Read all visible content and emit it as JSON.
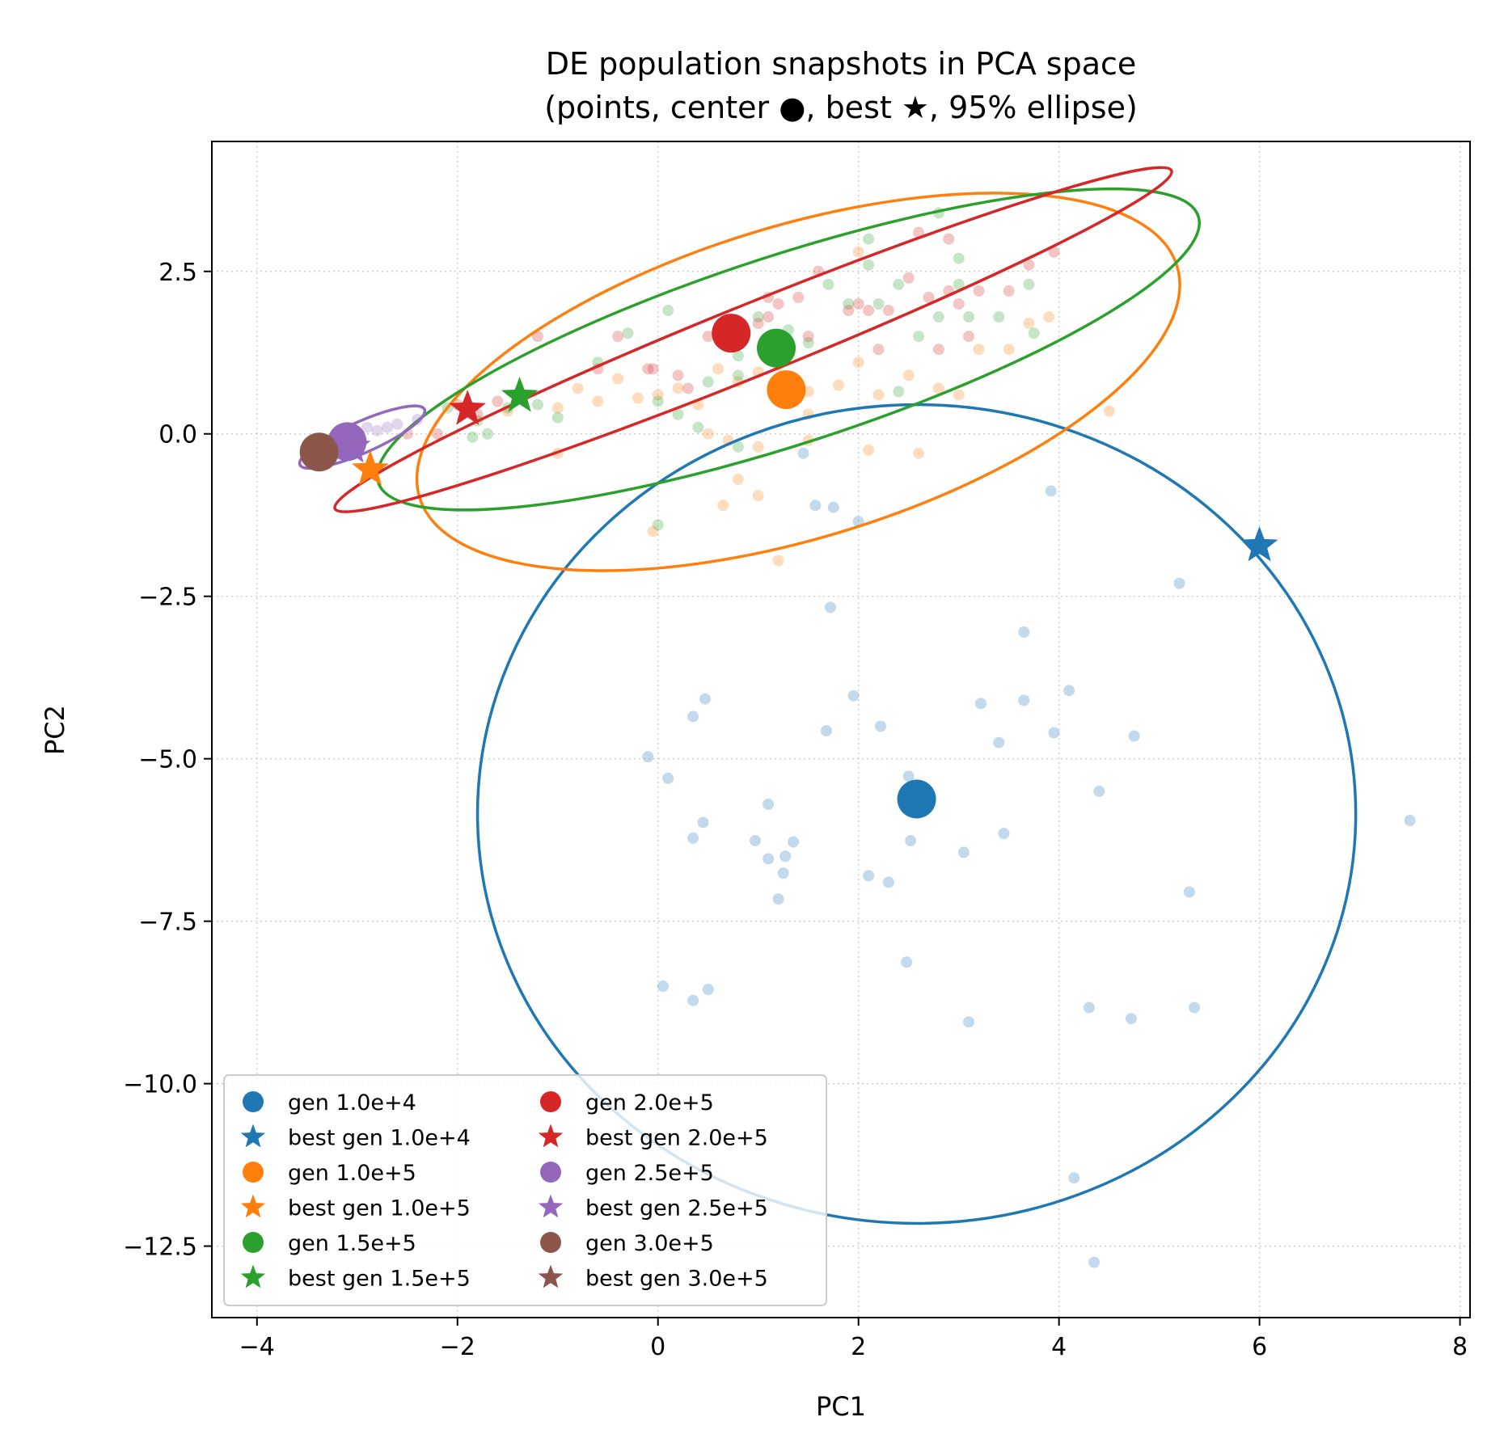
{
  "chart_data": {
    "type": "scatter",
    "title": "DE population snapshots in PCA space",
    "subtitle": "(points, center ●, best ★, 95% ellipse)",
    "xlabel": "PC1",
    "ylabel": "PC2",
    "xlim": [
      -4.45,
      8.1
    ],
    "ylim": [
      -13.6,
      4.5
    ],
    "xticks": [
      -4,
      -2,
      0,
      2,
      4,
      6,
      8
    ],
    "xtick_labels": [
      "−4",
      "−2",
      "0",
      "2",
      "4",
      "6",
      "8"
    ],
    "yticks": [
      2.5,
      0.0,
      -2.5,
      -5.0,
      -7.5,
      -10.0,
      -12.5
    ],
    "ytick_labels": [
      "2.5",
      "0.0",
      "−2.5",
      "−5.0",
      "−7.5",
      "−10.0",
      "−12.5"
    ],
    "grid": true,
    "legend_position": "lower-left",
    "series": [
      {
        "name": "gen 1.0e+4",
        "best_name": "best gen 1.0e+4",
        "color": "#1f77b4",
        "center": [
          2.58,
          -5.62
        ],
        "best": [
          6.0,
          -1.72
        ],
        "ellipse": {
          "cx": 2.58,
          "cy": -5.85,
          "rx": 4.38,
          "ry": 6.3,
          "angle": 0
        },
        "points": [
          [
            -0.1,
            -4.97
          ],
          [
            0.1,
            -5.3
          ],
          [
            0.35,
            -4.35
          ],
          [
            0.47,
            -4.08
          ],
          [
            0.45,
            -5.98
          ],
          [
            0.35,
            -6.22
          ],
          [
            0.97,
            -6.26
          ],
          [
            1.1,
            -5.7
          ],
          [
            1.1,
            -6.54
          ],
          [
            1.27,
            -6.5
          ],
          [
            1.35,
            -6.28
          ],
          [
            1.25,
            -6.76
          ],
          [
            1.2,
            -7.16
          ],
          [
            1.68,
            -4.57
          ],
          [
            1.72,
            -2.67
          ],
          [
            1.95,
            -4.03
          ],
          [
            2.1,
            -6.8
          ],
          [
            2.22,
            -4.5
          ],
          [
            2.3,
            -6.9
          ],
          [
            2.5,
            -5.27
          ],
          [
            2.52,
            -6.26
          ],
          [
            2.48,
            -8.13
          ],
          [
            3.05,
            -6.44
          ],
          [
            3.1,
            -9.05
          ],
          [
            3.22,
            -4.15
          ],
          [
            3.4,
            -4.75
          ],
          [
            3.45,
            -6.15
          ],
          [
            3.65,
            -4.1
          ],
          [
            3.65,
            -3.05
          ],
          [
            3.95,
            -4.6
          ],
          [
            4.1,
            -3.95
          ],
          [
            4.3,
            -8.83
          ],
          [
            4.4,
            -5.5
          ],
          [
            4.72,
            -9.0
          ],
          [
            4.75,
            -4.65
          ],
          [
            5.2,
            -2.3
          ],
          [
            5.3,
            -7.05
          ],
          [
            5.35,
            -8.83
          ],
          [
            7.5,
            -5.95
          ],
          [
            0.05,
            -8.5
          ],
          [
            0.35,
            -8.72
          ],
          [
            0.5,
            -8.55
          ],
          [
            4.15,
            -11.45
          ],
          [
            4.35,
            -12.75
          ],
          [
            3.92,
            -0.88
          ],
          [
            1.45,
            -0.3
          ],
          [
            1.57,
            -1.1
          ],
          [
            1.75,
            -1.13
          ],
          [
            2.0,
            -1.35
          ]
        ]
      },
      {
        "name": "gen 1.0e+5",
        "best_name": "best gen 1.0e+5",
        "color": "#ff7f0e",
        "center": [
          1.28,
          0.68
        ],
        "best": [
          -2.87,
          -0.55
        ],
        "ellipse": {
          "cx": 1.4,
          "cy": 0.8,
          "rx": 3.95,
          "ry": 2.4,
          "angle": 17
        },
        "points": [
          [
            -1.5,
            0.35
          ],
          [
            -1.0,
            0.4
          ],
          [
            -0.8,
            0.7
          ],
          [
            -0.6,
            0.5
          ],
          [
            -0.4,
            0.85
          ],
          [
            -0.2,
            0.55
          ],
          [
            0.0,
            0.6
          ],
          [
            0.2,
            0.7
          ],
          [
            0.4,
            0.45
          ],
          [
            0.6,
            1.0
          ],
          [
            0.8,
            0.8
          ],
          [
            1.0,
            0.95
          ],
          [
            1.2,
            1.05
          ],
          [
            1.5,
            0.65
          ],
          [
            1.8,
            0.75
          ],
          [
            2.0,
            1.1
          ],
          [
            2.2,
            0.6
          ],
          [
            2.5,
            0.9
          ],
          [
            2.8,
            0.7
          ],
          [
            3.0,
            0.6
          ],
          [
            3.2,
            1.3
          ],
          [
            3.5,
            1.3
          ],
          [
            3.7,
            1.7
          ],
          [
            3.9,
            1.8
          ],
          [
            4.5,
            0.35
          ],
          [
            2.0,
            2.8
          ],
          [
            1.5,
            0.3
          ],
          [
            0.5,
            0.0
          ],
          [
            0.7,
            -0.1
          ],
          [
            1.0,
            -0.2
          ],
          [
            1.5,
            -0.1
          ],
          [
            2.1,
            -0.25
          ],
          [
            2.6,
            -0.3
          ],
          [
            0.8,
            -0.7
          ],
          [
            1.0,
            -0.95
          ],
          [
            0.65,
            -1.1
          ],
          [
            1.2,
            -1.95
          ],
          [
            -0.05,
            -1.5
          ],
          [
            -1.0,
            -0.3
          ],
          [
            -2.8,
            -0.55
          ]
        ]
      },
      {
        "name": "gen 1.5e+5",
        "best_name": "best gen 1.5e+5",
        "color": "#2ca02c",
        "center": [
          1.18,
          1.32
        ],
        "best": [
          -1.38,
          0.58
        ],
        "ellipse": {
          "cx": 1.3,
          "cy": 1.3,
          "rx": 4.3,
          "ry": 1.45,
          "angle": 18
        },
        "points": [
          [
            -1.8,
            0.2
          ],
          [
            -1.5,
            0.4
          ],
          [
            -1.2,
            0.45
          ],
          [
            -1.0,
            0.25
          ],
          [
            -0.6,
            1.1
          ],
          [
            -0.3,
            1.55
          ],
          [
            0.0,
            0.5
          ],
          [
            0.1,
            1.9
          ],
          [
            0.5,
            0.8
          ],
          [
            0.8,
            1.2
          ],
          [
            1.0,
            1.8
          ],
          [
            1.3,
            1.6
          ],
          [
            1.5,
            1.4
          ],
          [
            1.7,
            2.3
          ],
          [
            1.9,
            2.0
          ],
          [
            2.1,
            2.6
          ],
          [
            2.2,
            2.0
          ],
          [
            2.4,
            2.3
          ],
          [
            2.6,
            1.5
          ],
          [
            2.8,
            1.8
          ],
          [
            3.0,
            2.3
          ],
          [
            3.0,
            2.7
          ],
          [
            3.1,
            1.8
          ],
          [
            3.4,
            1.8
          ],
          [
            3.7,
            2.3
          ],
          [
            3.75,
            1.55
          ],
          [
            2.8,
            3.4
          ],
          [
            2.1,
            3.0
          ],
          [
            0.8,
            0.9
          ],
          [
            1.2,
            1.4
          ],
          [
            0.2,
            0.3
          ],
          [
            0.4,
            0.1
          ],
          [
            0.8,
            -0.2
          ],
          [
            0.0,
            -1.4
          ],
          [
            2.4,
            0.65
          ],
          [
            -1.7,
            0.0
          ],
          [
            -1.9,
            0.45
          ],
          [
            -2.1,
            0.4
          ],
          [
            -1.85,
            -0.05
          ]
        ]
      },
      {
        "name": "gen 2.0e+5",
        "best_name": "best gen 2.0e+5",
        "color": "#d62728",
        "center": [
          0.73,
          1.55
        ],
        "best": [
          -1.9,
          0.38
        ],
        "ellipse": {
          "cx": 0.95,
          "cy": 1.45,
          "rx": 4.5,
          "ry": 0.55,
          "angle": 22
        },
        "points": [
          [
            -2.5,
            0.0
          ],
          [
            -2.2,
            0.0
          ],
          [
            -2.0,
            0.45
          ],
          [
            -1.8,
            0.3
          ],
          [
            -1.6,
            0.5
          ],
          [
            -1.2,
            1.5
          ],
          [
            -0.6,
            1.0
          ],
          [
            -0.4,
            1.5
          ],
          [
            -0.1,
            1.0
          ],
          [
            0.3,
            0.7
          ],
          [
            0.5,
            1.5
          ],
          [
            0.8,
            1.6
          ],
          [
            1.0,
            1.7
          ],
          [
            1.1,
            1.8
          ],
          [
            1.2,
            2.0
          ],
          [
            1.4,
            2.1
          ],
          [
            1.5,
            1.5
          ],
          [
            1.6,
            2.5
          ],
          [
            1.9,
            1.9
          ],
          [
            2.0,
            2.0
          ],
          [
            2.1,
            1.9
          ],
          [
            2.3,
            1.9
          ],
          [
            2.5,
            2.4
          ],
          [
            2.6,
            3.1
          ],
          [
            2.9,
            2.2
          ],
          [
            3.0,
            2.0
          ],
          [
            3.2,
            2.2
          ],
          [
            3.5,
            2.2
          ],
          [
            3.7,
            2.6
          ],
          [
            3.95,
            2.8
          ],
          [
            2.8,
            1.3
          ],
          [
            2.9,
            3.0
          ],
          [
            3.1,
            1.5
          ],
          [
            1.1,
            2.1
          ],
          [
            2.2,
            1.3
          ],
          [
            2.7,
            2.1
          ],
          [
            -0.05,
            1.0
          ],
          [
            0.2,
            0.9
          ]
        ]
      },
      {
        "name": "gen 2.5e+5",
        "best_name": "best gen 2.5e+5",
        "color": "#9467bd",
        "center": [
          -3.1,
          -0.12
        ],
        "best": [
          -3.05,
          -0.2
        ],
        "ellipse": {
          "cx": -2.95,
          "cy": -0.05,
          "rx": 0.68,
          "ry": 0.24,
          "angle": 24
        },
        "points": [
          [
            -3.4,
            -0.25
          ],
          [
            -3.2,
            -0.15
          ],
          [
            -3.0,
            -0.05
          ],
          [
            -2.8,
            0.05
          ],
          [
            -2.6,
            0.15
          ],
          [
            -2.4,
            0.22
          ],
          [
            -3.3,
            -0.3
          ],
          [
            -2.9,
            0.1
          ],
          [
            -2.7,
            0.1
          ],
          [
            -3.1,
            -0.2
          ]
        ]
      },
      {
        "name": "gen 3.0e+5",
        "best_name": "best gen 3.0e+5",
        "color": "#8c564b",
        "center": [
          -3.38,
          -0.28
        ],
        "best": [
          -3.38,
          -0.28
        ],
        "ellipse": null,
        "points": []
      }
    ]
  }
}
